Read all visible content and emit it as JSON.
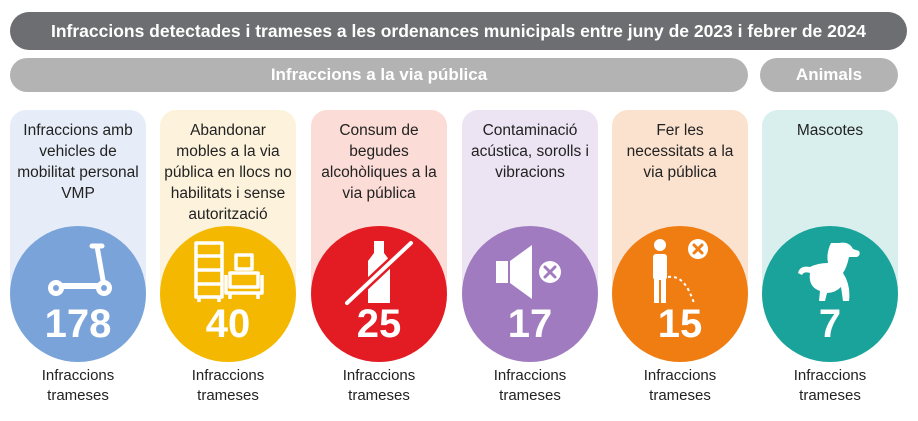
{
  "title": "Infraccions detectades i trameses a les ordenances municipals entre juny de 2023 i febrer de 2024",
  "groups": {
    "via_publica": "Infraccions a la via pública",
    "animals": "Animals"
  },
  "footer_label": "Infraccions trameses",
  "categories": [
    {
      "label": "Infraccions amb vehicles de mobilitat personal VMP",
      "count": "178",
      "icon": "scooter-icon",
      "color": "#7aa3d9",
      "bg": "#e6edf8"
    },
    {
      "label": "Abandonar mobles a la via pública en llocs no habilitats i sense autorització",
      "count": "40",
      "icon": "furniture-icon",
      "color": "#f5b800",
      "bg": "#fdf3dc"
    },
    {
      "label": "Consum de begudes alcohòliques a la via pública",
      "count": "25",
      "icon": "no-bottle-icon",
      "color": "#e31b23",
      "bg": "#fbdcd7"
    },
    {
      "label": "Contaminació acústica, sorolls i vibracions",
      "count": "17",
      "icon": "speaker-mute-icon",
      "color": "#a07bc0",
      "bg": "#ece4f3"
    },
    {
      "label": "Fer les necessitats a la via pública",
      "count": "15",
      "icon": "urinating-person-icon",
      "color": "#ef7d12",
      "bg": "#fbe2cf"
    },
    {
      "label": "Mascotes",
      "count": "7",
      "icon": "dog-icon",
      "color": "#1aa39b",
      "bg": "#d8efed"
    }
  ]
}
